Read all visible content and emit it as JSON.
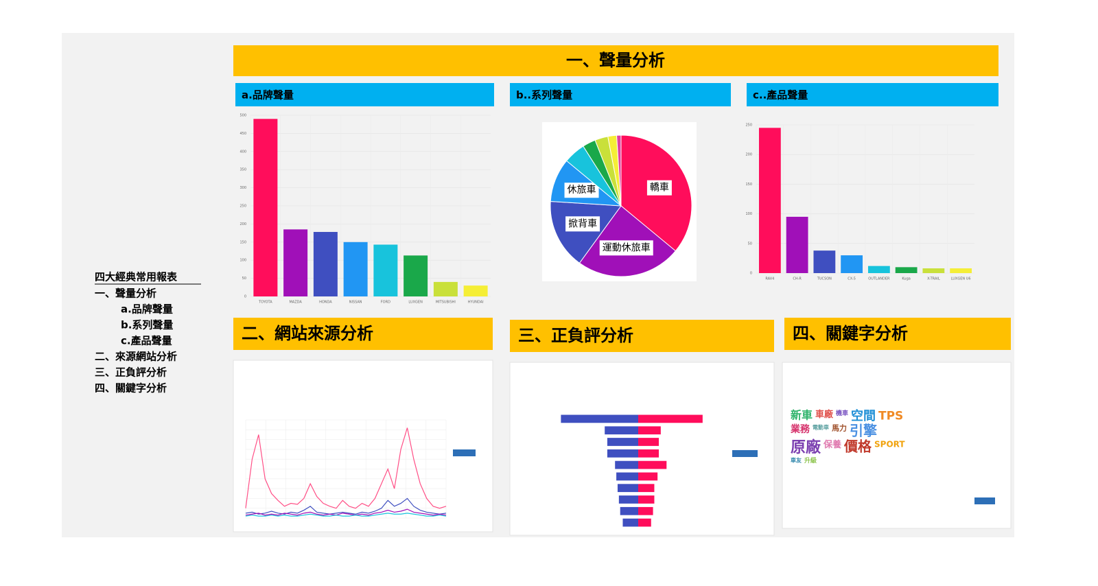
{
  "sidebar": {
    "title": "四大經典常用報表",
    "items": [
      "一、聲量分析",
      "a.品牌聲量",
      "b.系列聲量",
      "c.產品聲量",
      "二、來源網站分析",
      "三、正負評分析",
      "四、關鍵字分析"
    ]
  },
  "section_title": "一、聲量分析",
  "chart_data": [
    {
      "type": "bar",
      "title": "a.品牌聲量",
      "categories": [
        "TOYOTA",
        "MAZDA",
        "HONDA",
        "NISSAN",
        "FORD",
        "LUXGEN",
        "MITSUBISHI",
        "HYUNDAI"
      ],
      "values": [
        490,
        185,
        178,
        150,
        143,
        113,
        40,
        30
      ],
      "colors": [
        "#ff0d5b",
        "#a010b8",
        "#3f4fc0",
        "#2196f3",
        "#18c3dc",
        "#1aa84a",
        "#c9e03a",
        "#f5ee36"
      ],
      "ylim": [
        0,
        500
      ],
      "yticks": [
        0,
        50,
        100,
        150,
        200,
        250,
        300,
        350,
        400,
        450,
        500
      ],
      "grid": true
    },
    {
      "type": "pie",
      "title": "b..系列聲量",
      "categories": [
        "轎車",
        "運動休旅車",
        "掀背車",
        "休旅車",
        null,
        null,
        null,
        null,
        null
      ],
      "values": [
        36,
        24,
        16,
        10,
        5,
        3,
        3,
        2,
        1
      ],
      "colors": [
        "#ff0d5b",
        "#a010b8",
        "#3f4fc0",
        "#2196f3",
        "#18c3dc",
        "#1aa84a",
        "#c9e03a",
        "#f5ee36",
        "#e040a0"
      ]
    },
    {
      "type": "bar",
      "title": "c..產品聲量",
      "categories": [
        "RAV4",
        "CH-R",
        "TUCSON",
        "CX-5",
        "OUTLANDER",
        "Kuga",
        "X-TRAIL",
        "LUXGEN U6"
      ],
      "values": [
        245,
        95,
        38,
        30,
        12,
        10,
        8,
        8
      ],
      "colors": [
        "#ff0d5b",
        "#a010b8",
        "#3f4fc0",
        "#2196f3",
        "#18c3dc",
        "#1aa84a",
        "#c9e03a",
        "#f5ee36"
      ],
      "ylim": [
        0,
        250
      ],
      "yticks": [
        0,
        50,
        100,
        150,
        200,
        250
      ],
      "grid": true
    },
    {
      "type": "line",
      "title": "二、網站來源分析",
      "ylim": [
        0,
        100
      ],
      "grid": true,
      "series": [
        {
          "color": "#ff4f86",
          "values": [
            10,
            60,
            85,
            40,
            25,
            18,
            12,
            15,
            14,
            20,
            35,
            22,
            15,
            12,
            10,
            18,
            12,
            10,
            15,
            12,
            20,
            35,
            50,
            30,
            70,
            92,
            60,
            35,
            20,
            12,
            10,
            12
          ]
        },
        {
          "color": "#3f4fc0",
          "values": [
            5,
            6,
            4,
            5,
            7,
            5,
            4,
            6,
            5,
            8,
            12,
            6,
            5,
            4,
            5,
            6,
            5,
            4,
            6,
            5,
            7,
            10,
            18,
            12,
            15,
            20,
            12,
            8,
            6,
            5,
            4,
            5
          ]
        },
        {
          "color": "#a010b8",
          "values": [
            3,
            4,
            5,
            3,
            4,
            3,
            5,
            4,
            3,
            5,
            6,
            4,
            3,
            4,
            3,
            5,
            4,
            3,
            4,
            3,
            5,
            6,
            8,
            6,
            7,
            9,
            6,
            5,
            4,
            3,
            4,
            3
          ]
        },
        {
          "color": "#18c3dc",
          "values": [
            2,
            3,
            2,
            2,
            3,
            2,
            3,
            2,
            2,
            3,
            4,
            3,
            2,
            2,
            3,
            2,
            2,
            3,
            2,
            2,
            3,
            4,
            5,
            4,
            4,
            5,
            4,
            3,
            2,
            2,
            3,
            2
          ]
        }
      ]
    },
    {
      "type": "tornado",
      "title": "三、正負評分析",
      "xlim": [
        0,
        130
      ],
      "series": [
        {
          "color": "#3f4fc0",
          "values": [
            120,
            52,
            48,
            48,
            36,
            34,
            32,
            30,
            28,
            24
          ]
        },
        {
          "color": "#ff0d5b",
          "values": [
            100,
            35,
            32,
            32,
            44,
            30,
            25,
            25,
            23,
            20
          ]
        }
      ]
    },
    {
      "type": "wordcloud",
      "title": "四、關鍵字分析",
      "categories": [
        "新車",
        "車廠",
        "機車",
        "空間",
        "TPS",
        "業務",
        "電動車",
        "馬力",
        "引擎",
        "原廠",
        "保養",
        "價格",
        "SPORT",
        "車友",
        "升級"
      ],
      "values": [
        16,
        13,
        9,
        18,
        17,
        14,
        8,
        11,
        20,
        22,
        13,
        20,
        12,
        8,
        9
      ],
      "colors": [
        "#2fb36b",
        "#e0504a",
        "#7a55c2",
        "#1f8fd6",
        "#f08a24",
        "#d6336c",
        "#5aa0a0",
        "#a0522d",
        "#4a90e2",
        "#7b3fb0",
        "#e07bb0",
        "#c0392b",
        "#f1a30e",
        "#2e86ab",
        "#8bc34a"
      ]
    }
  ]
}
